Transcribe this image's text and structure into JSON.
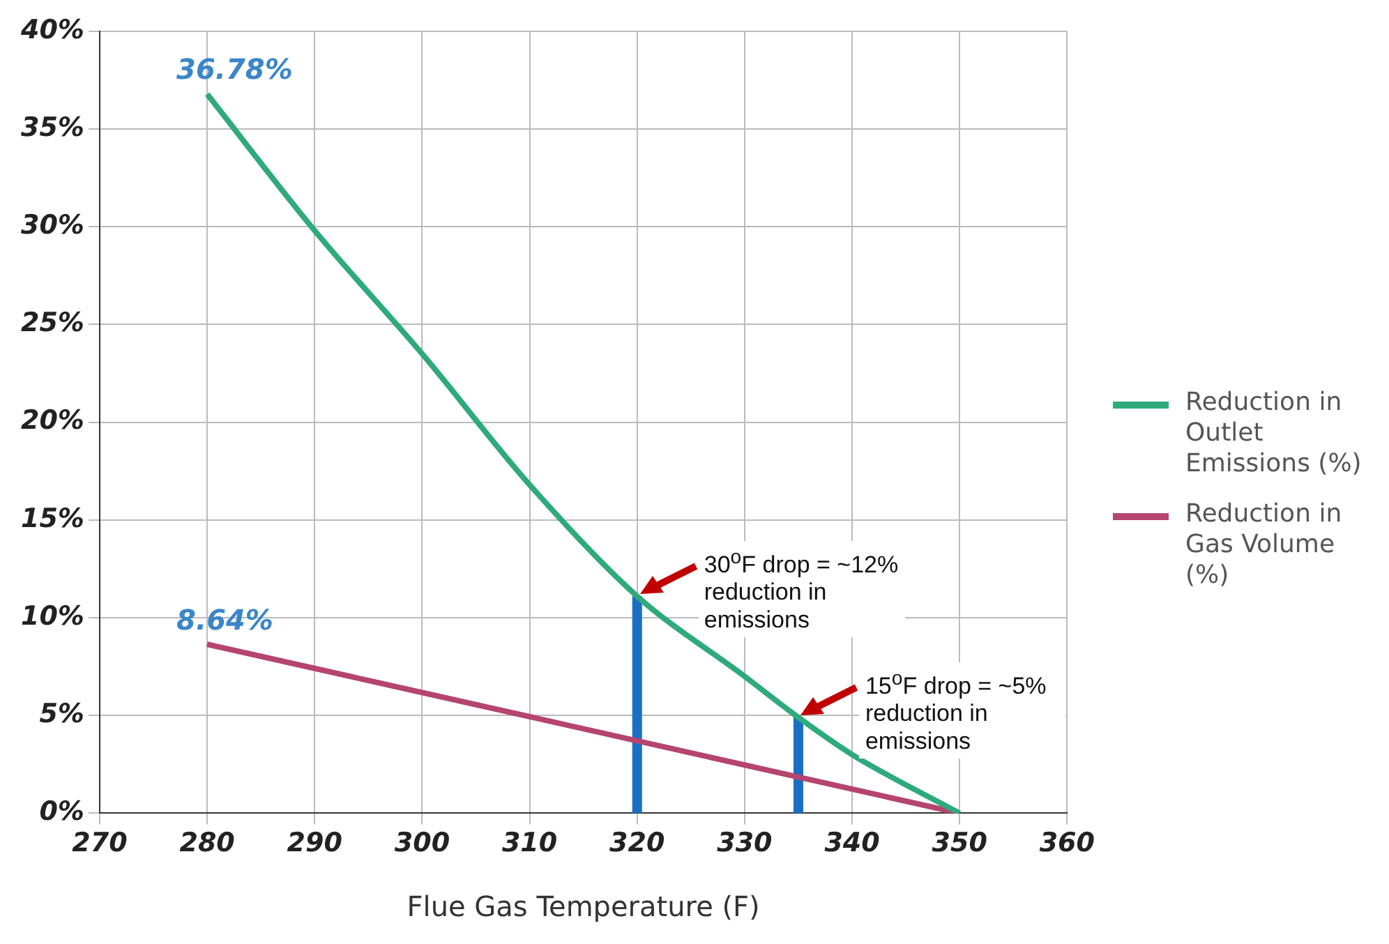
{
  "chart_data": {
    "type": "line",
    "xlabel": "Flue Gas Temperature (F)",
    "xlim": [
      270,
      360
    ],
    "xticks": [
      270,
      280,
      290,
      300,
      310,
      320,
      330,
      340,
      350,
      360
    ],
    "ylim": [
      0,
      40
    ],
    "yticks": [
      {
        "value": 0,
        "label": "0%"
      },
      {
        "value": 5,
        "label": "5%"
      },
      {
        "value": 10,
        "label": "10%"
      },
      {
        "value": 15,
        "label": "15%"
      },
      {
        "value": 20,
        "label": "20%"
      },
      {
        "value": 25,
        "label": "25%"
      },
      {
        "value": 30,
        "label": "30%"
      },
      {
        "value": 35,
        "label": "35%"
      },
      {
        "value": 40,
        "label": "40%"
      }
    ],
    "grid": true,
    "legend": "right",
    "marker": "none",
    "line_style": "solid",
    "series": [
      {
        "name": "Reduction in Outlet Emissions (%)",
        "color": "#2eaa7c",
        "x": [
          280,
          290,
          300,
          310,
          320,
          330,
          335,
          340,
          350
        ],
        "values": [
          36.78,
          29.8,
          23.5,
          16.8,
          11.1,
          7,
          4.9,
          3,
          0
        ],
        "value_labels": [
          "36.78%",
          null,
          null,
          null,
          null,
          null,
          null,
          null,
          null
        ]
      },
      {
        "name": "Reduction in Gas Volume (%)",
        "color": "#b5456e",
        "x": [
          280,
          350
        ],
        "values": [
          8.64,
          0
        ],
        "value_labels": [
          "8.64%",
          null
        ]
      },
      {
        "color": "#1a6fc4",
        "x": [
          320,
          320
        ],
        "values": [
          0,
          11.1
        ]
      },
      {
        "color": "#1a6fc4",
        "x": [
          335,
          335
        ],
        "values": [
          0,
          4.9
        ]
      }
    ],
    "annotations": [
      {
        "text": "30$^{o}$F drop = ~12% reduction in emissions",
        "x": 320,
        "y": 11.1
      },
      {
        "text": "15$^{o}$F drop = ~5% reduction in emissions",
        "x": 335,
        "y": 4.9
      }
    ]
  }
}
